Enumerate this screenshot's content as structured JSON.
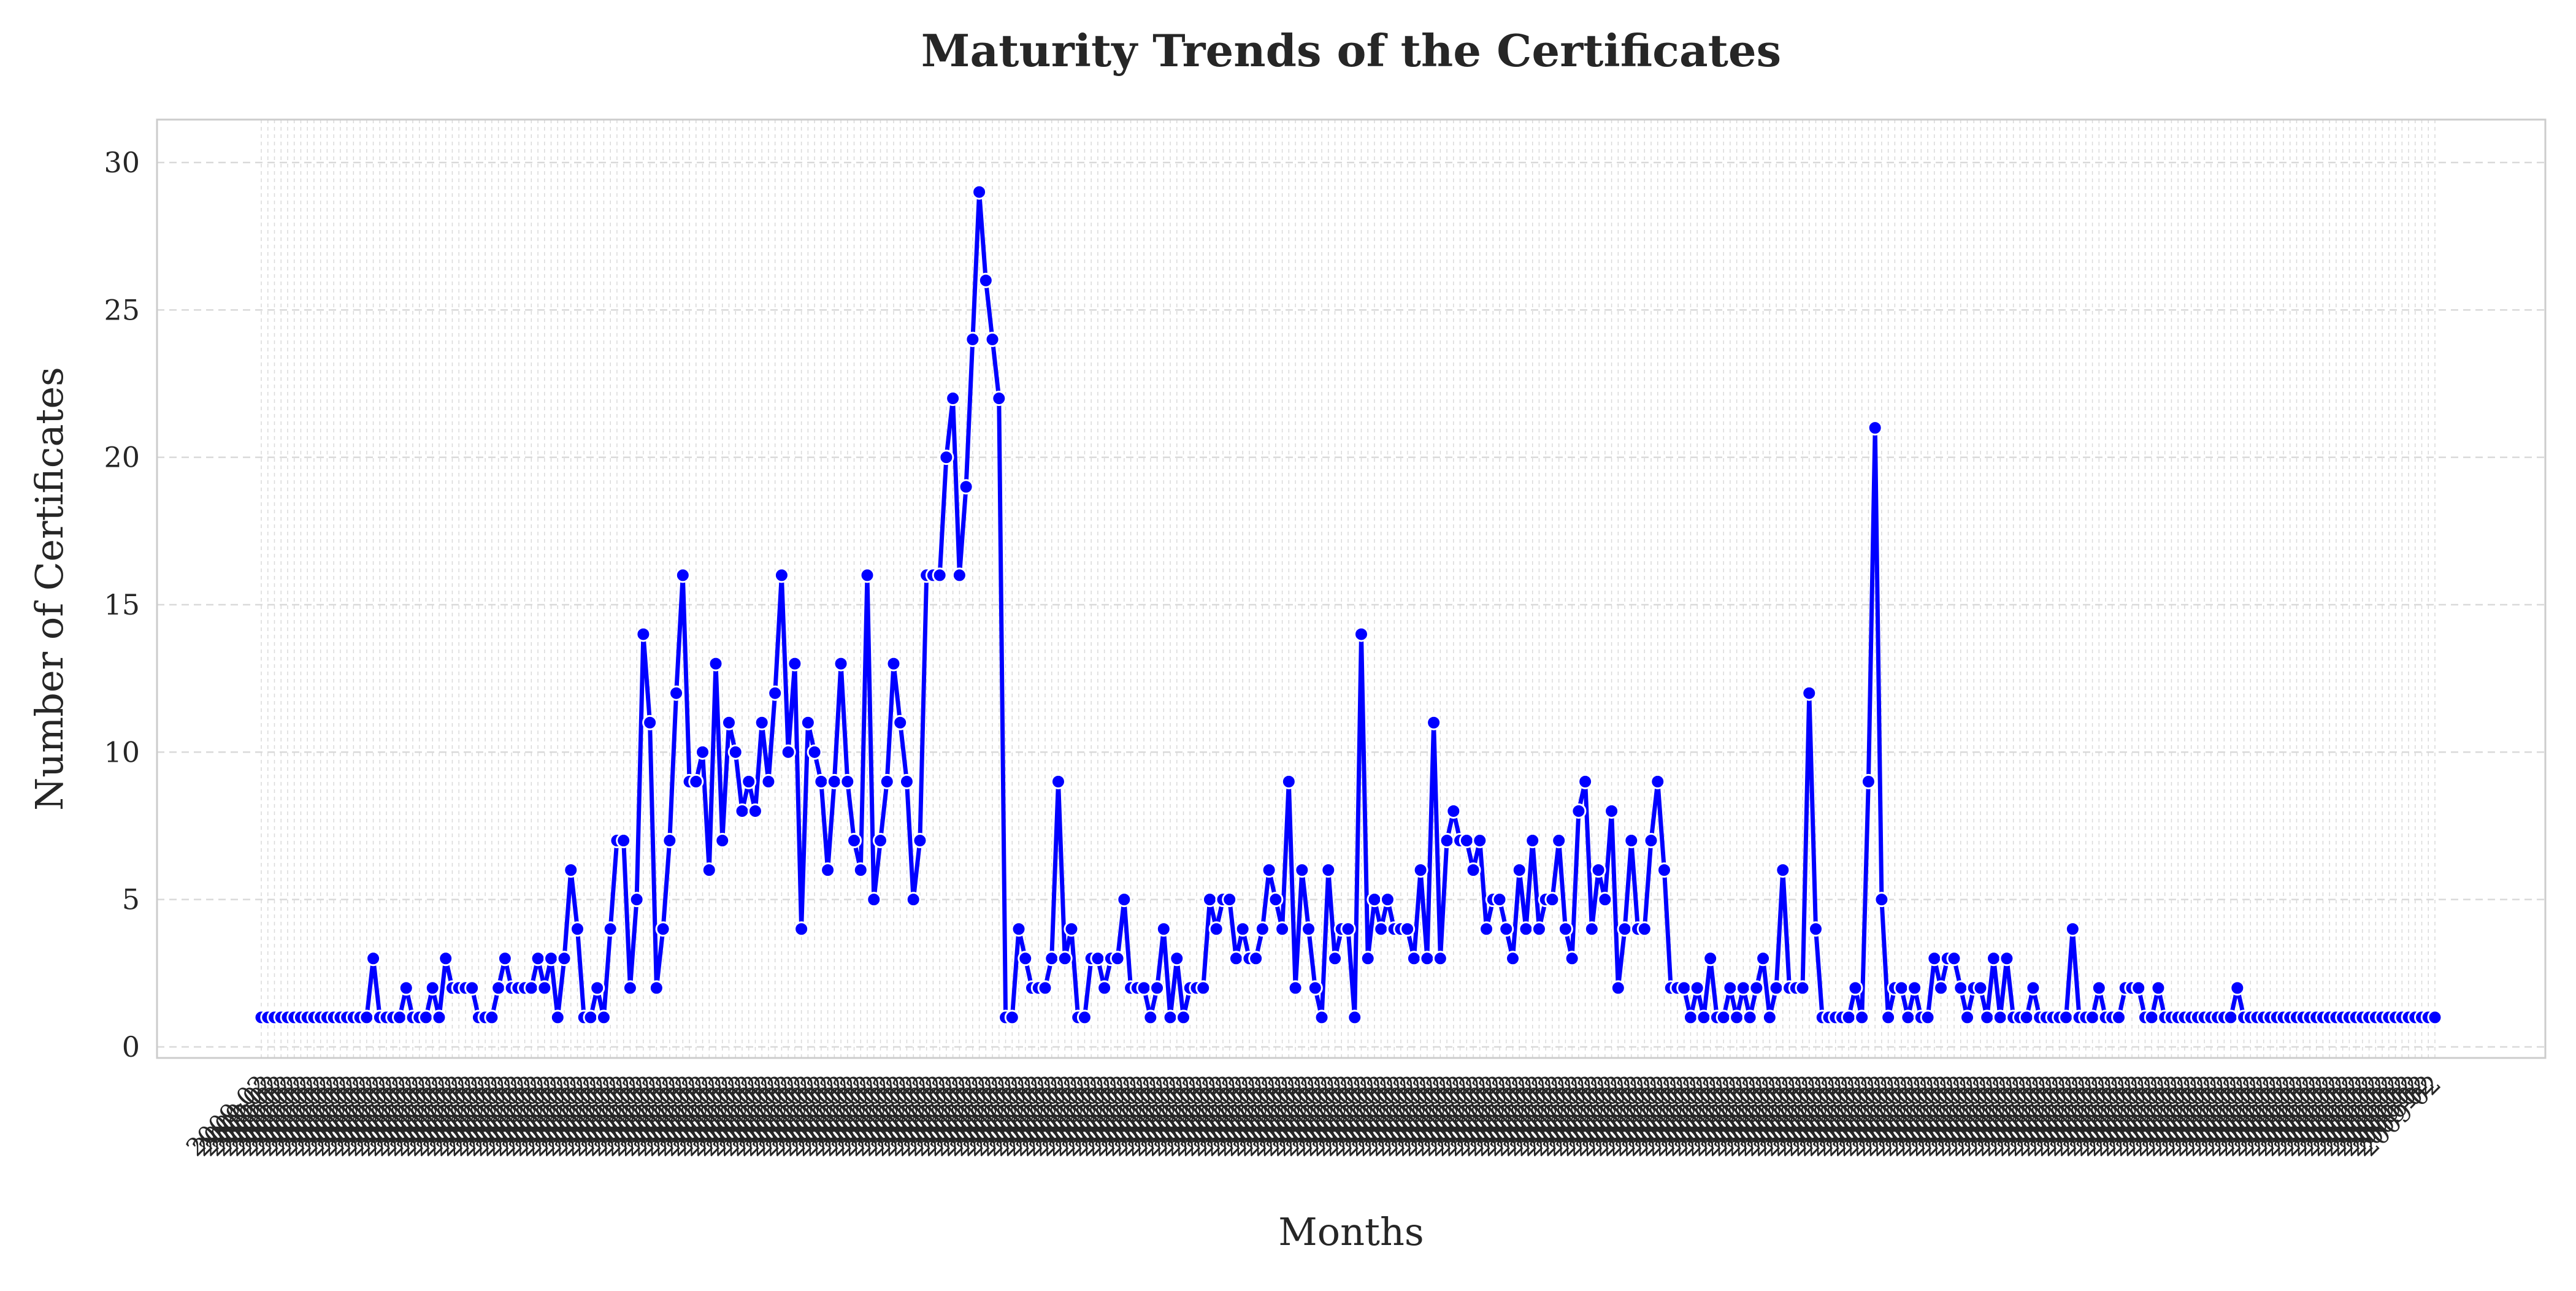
{
  "chart_data": {
    "type": "line",
    "title": "Maturity Trends of the Certificates",
    "xlabel": "Months",
    "ylabel": "Number of Certificates",
    "ylim": [
      0,
      30
    ],
    "yticks": [
      0,
      5,
      10,
      15,
      20,
      25,
      30
    ],
    "grid": true,
    "legend": "none",
    "colors": {
      "line": "#0000ff",
      "marker": "#0000ff",
      "marker_edge": "#ffffff",
      "grid": "#d9d9d9",
      "frame": "#cccccc"
    },
    "x_tick_label_sample": "2009-02",
    "series": [
      {
        "values": [
          1,
          1,
          1,
          1,
          1,
          1,
          1,
          1,
          1,
          1,
          1,
          1,
          1,
          1,
          1,
          1,
          1,
          3,
          1,
          1,
          1,
          1,
          2,
          1,
          1,
          1,
          2,
          1,
          3,
          2,
          2,
          2,
          2,
          1,
          1,
          1,
          2,
          3,
          2,
          2,
          2,
          2,
          3,
          2,
          3,
          1,
          3,
          6,
          4,
          1,
          1,
          2,
          1,
          4,
          7,
          7,
          2,
          5,
          14,
          11,
          2,
          4,
          7,
          12,
          16,
          9,
          9,
          10,
          6,
          13,
          7,
          11,
          10,
          8,
          9,
          8,
          11,
          9,
          12,
          16,
          10,
          13,
          4,
          11,
          10,
          9,
          6,
          9,
          13,
          9,
          7,
          6,
          16,
          5,
          7,
          9,
          13,
          11,
          9,
          5,
          7,
          16,
          16,
          16,
          20,
          22,
          16,
          19,
          24,
          29,
          26,
          24,
          22,
          1,
          1,
          4,
          3,
          2,
          2,
          2,
          3,
          9,
          3,
          4,
          1,
          1,
          3,
          3,
          2,
          3,
          3,
          5,
          2,
          2,
          2,
          1,
          2,
          4,
          1,
          3,
          1,
          2,
          2,
          2,
          5,
          4,
          5,
          5,
          3,
          4,
          3,
          3,
          4,
          6,
          5,
          4,
          9,
          2,
          6,
          4,
          2,
          1,
          6,
          3,
          4,
          4,
          1,
          14,
          3,
          5,
          4,
          5,
          4,
          4,
          4,
          3,
          6,
          3,
          11,
          3,
          7,
          8,
          7,
          7,
          6,
          7,
          4,
          5,
          5,
          4,
          3,
          6,
          4,
          7,
          4,
          5,
          5,
          7,
          4,
          3,
          8,
          9,
          4,
          6,
          5,
          8,
          2,
          4,
          7,
          4,
          4,
          7,
          9,
          6,
          2,
          2,
          2,
          1,
          2,
          1,
          3,
          1,
          1,
          2,
          1,
          2,
          1,
          2,
          3,
          1,
          2,
          6,
          2,
          2,
          2,
          12,
          4,
          1,
          1,
          1,
          1,
          1,
          2,
          1,
          9,
          21,
          5,
          1,
          2,
          2,
          1,
          2,
          1,
          1,
          3,
          2,
          3,
          3,
          2,
          1,
          2,
          2,
          1,
          3,
          1,
          3,
          1,
          1,
          1,
          2,
          1,
          1,
          1,
          1,
          1,
          4,
          1,
          1,
          1,
          2,
          1,
          1,
          1,
          2,
          2,
          2,
          1,
          1,
          2,
          1,
          1,
          1,
          1,
          1,
          1,
          1,
          1,
          1,
          1,
          1,
          2,
          1,
          1,
          1,
          1,
          1,
          1,
          1,
          1,
          1,
          1,
          1,
          1,
          1,
          1,
          1,
          1,
          1,
          1,
          1,
          1,
          1,
          1,
          1,
          1,
          1,
          1,
          1,
          1,
          1,
          1
        ]
      }
    ]
  }
}
